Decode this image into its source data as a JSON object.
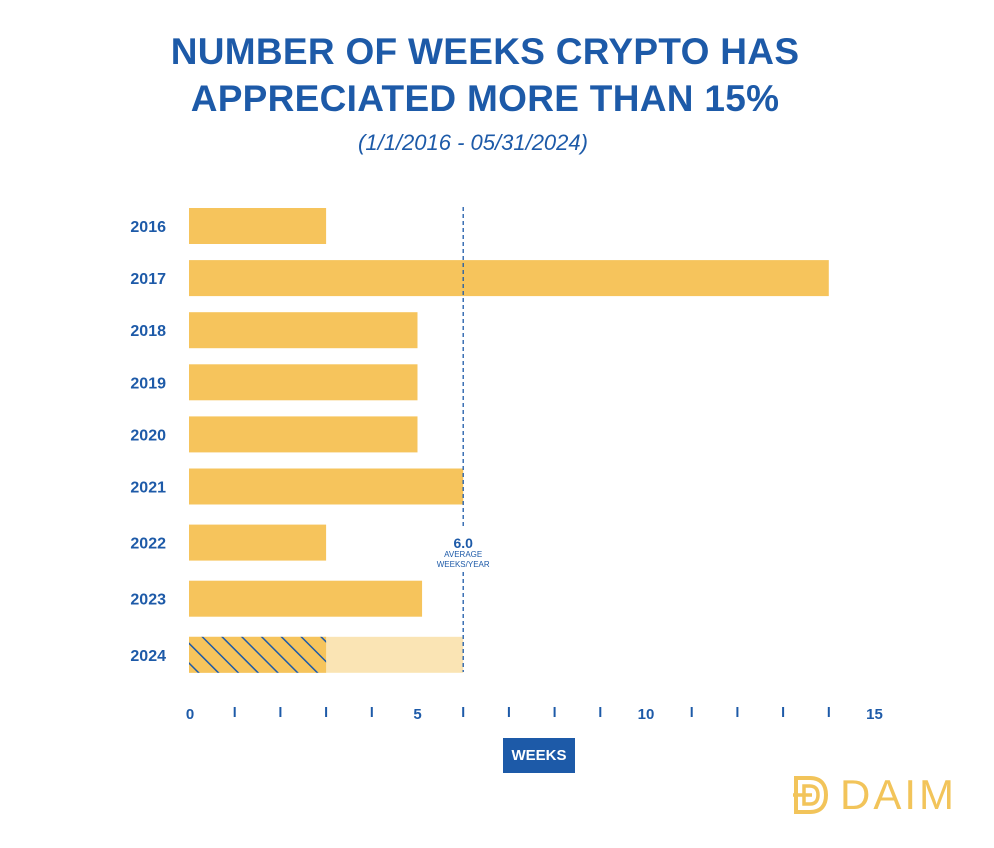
{
  "title_line1": "NUMBER OF WEEKS CRYPTO HAS",
  "title_line2": "APPRECIATED MORE THAN 15%",
  "subtitle": "(1/1/2016 - 05/31/2024)",
  "xlabel": "WEEKS",
  "average": {
    "value_label": "6.0",
    "line1": "AVERAGE",
    "line2": "WEEKS/YEAR"
  },
  "logo": {
    "text": "DAIM",
    "icon": "daim-logo-icon"
  },
  "colors": {
    "title": "#1d5aa8",
    "bar": "#f6c45c",
    "bar_light": "#fae4b4",
    "hatch": "#1d5aa8",
    "logo": "#f2c45a"
  },
  "chart_data": {
    "type": "bar",
    "orientation": "horizontal",
    "categories": [
      "2016",
      "2017",
      "2018",
      "2019",
      "2020",
      "2021",
      "2022",
      "2023",
      "2024"
    ],
    "values": [
      3,
      14,
      5,
      5,
      5,
      6,
      3,
      5.1,
      3
    ],
    "partial_2024": {
      "actual": 3,
      "projected": 6
    },
    "average": 6,
    "xlim": [
      0,
      15
    ],
    "xticks": [
      0,
      5,
      10,
      15
    ],
    "xlabel": "WEEKS",
    "title": "NUMBER OF WEEKS CRYPTO HAS APPRECIATED MORE THAN 15%",
    "subtitle": "(1/1/2016 - 05/31/2024)",
    "grid": false
  }
}
